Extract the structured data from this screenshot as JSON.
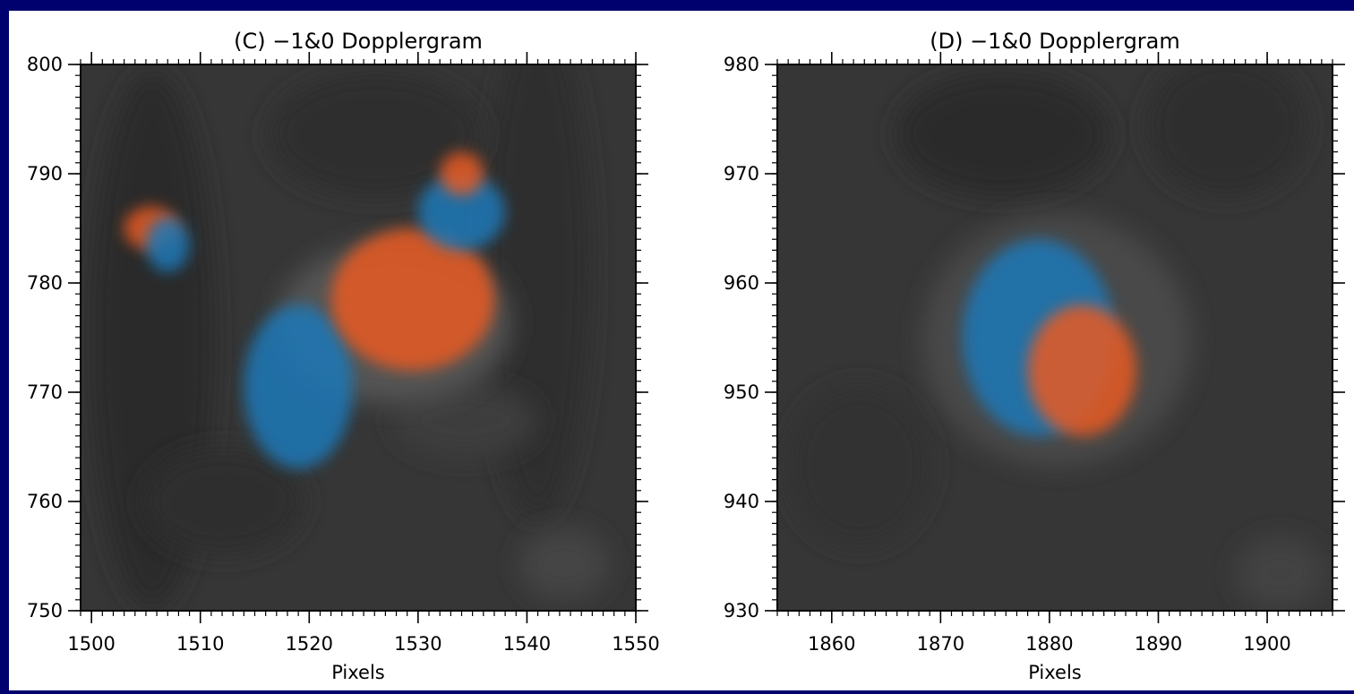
{
  "colors": {
    "frame": "#00006e",
    "background": "#ffffff",
    "redshift": "#e85a22",
    "blueshift": "#1a78b8",
    "field": "#333333"
  },
  "chart_data": [
    {
      "type": "heatmap",
      "title": "(C) −1&0 Dopplergram",
      "xlabel": "Pixels",
      "ylabel": "",
      "xlim": [
        1499,
        1550
      ],
      "ylim": [
        750,
        800
      ],
      "xticks": [
        1500,
        1510,
        1520,
        1530,
        1540,
        1550
      ],
      "yticks": [
        750,
        760,
        770,
        780,
        790,
        800
      ],
      "colormap": "grayscale with red (redshift) and blue (blueshift) overlay",
      "features": [
        {
          "color": "blue",
          "x": [
            1514,
            1524
          ],
          "y": [
            763,
            778
          ]
        },
        {
          "color": "red",
          "x": [
            1522,
            1537
          ],
          "y": [
            772,
            785
          ]
        },
        {
          "color": "blue",
          "x": [
            1530,
            1538
          ],
          "y": [
            783,
            790
          ]
        },
        {
          "color": "red",
          "x": [
            1532,
            1536
          ],
          "y": [
            788,
            792
          ]
        },
        {
          "color": "red",
          "x": [
            1503,
            1508
          ],
          "y": [
            783,
            787
          ]
        },
        {
          "color": "blue",
          "x": [
            1505,
            1509
          ],
          "y": [
            781,
            786
          ]
        }
      ]
    },
    {
      "type": "heatmap",
      "title": "(D) −1&0 Dopplergram",
      "xlabel": "Pixels",
      "ylabel": "",
      "xlim": [
        1855,
        1906
      ],
      "ylim": [
        930,
        980
      ],
      "xticks": [
        1860,
        1870,
        1880,
        1890,
        1900
      ],
      "yticks": [
        930,
        940,
        950,
        960,
        970,
        980
      ],
      "colormap": "grayscale with red (redshift) and blue (blueshift) overlay",
      "features": [
        {
          "color": "blue",
          "x": [
            1872,
            1886
          ],
          "y": [
            946,
            964
          ]
        },
        {
          "color": "red",
          "x": [
            1878,
            1888
          ],
          "y": [
            946,
            958
          ]
        }
      ]
    }
  ]
}
